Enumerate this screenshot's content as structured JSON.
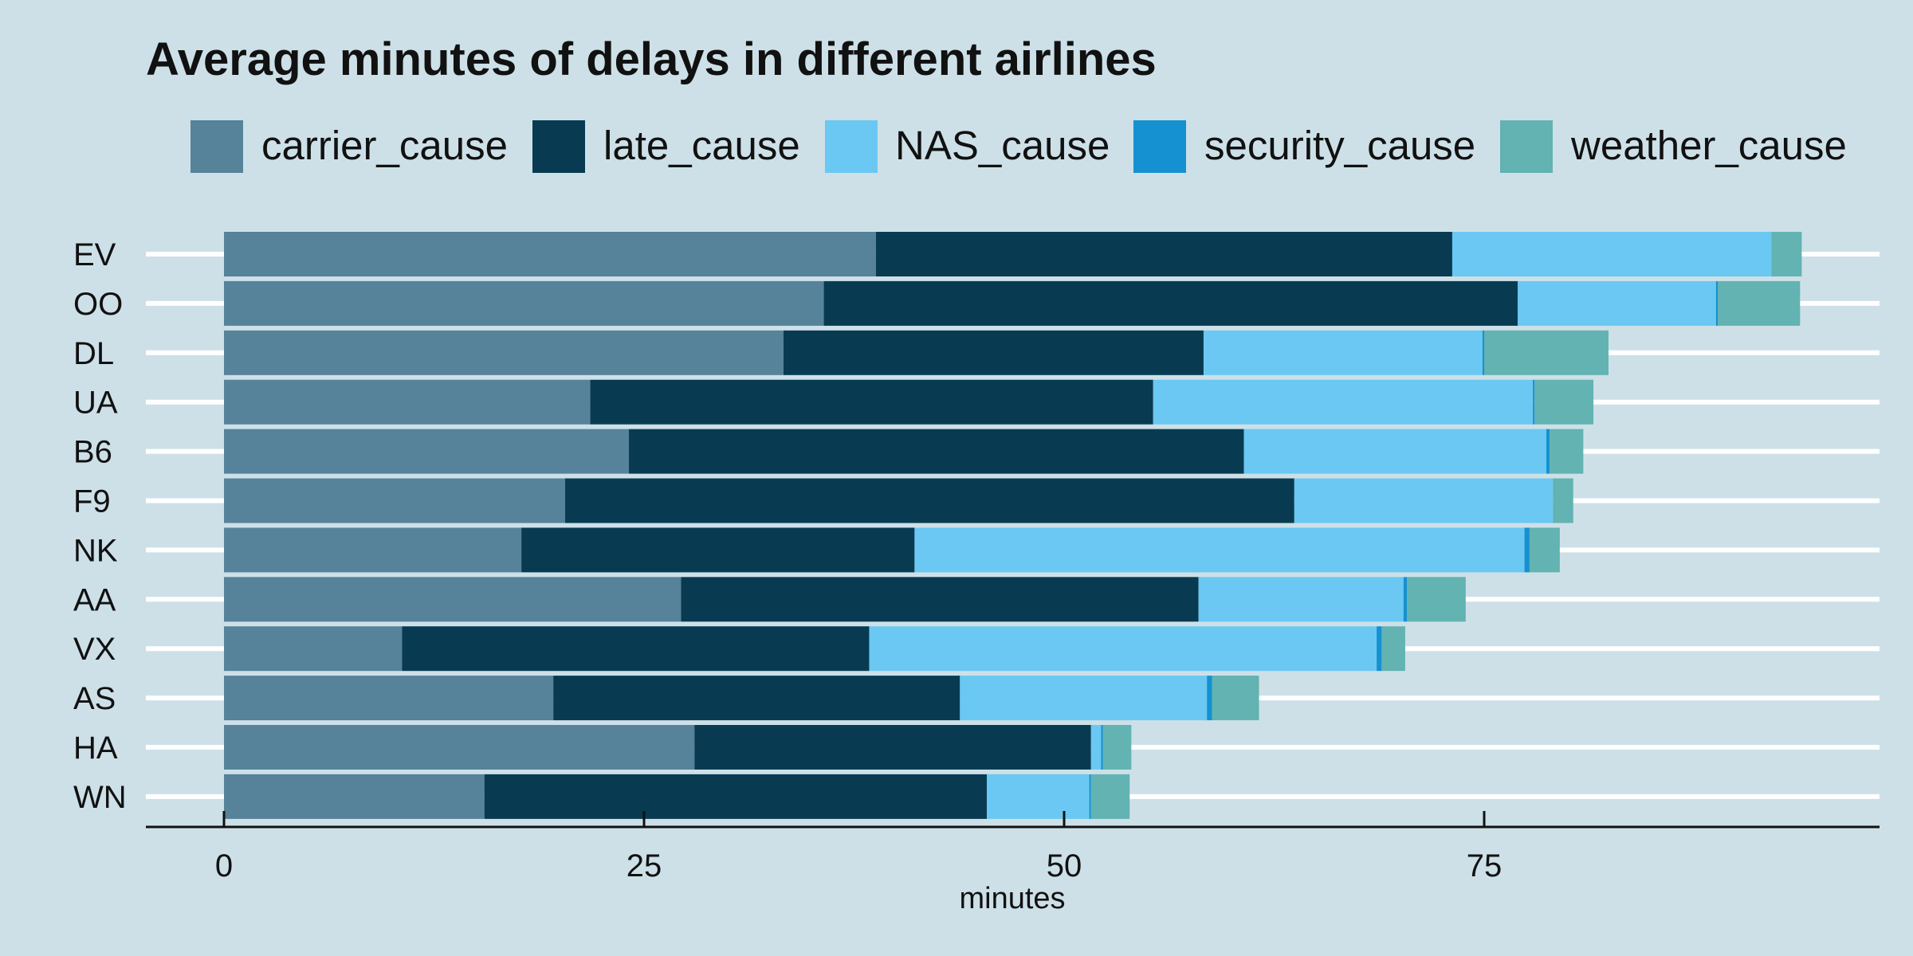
{
  "chart_data": {
    "type": "bar",
    "orientation": "horizontal",
    "stacked": true,
    "title": "Average minutes of delays in different airlines",
    "xlabel": "minutes",
    "ylabel": "",
    "xlim": [
      0,
      98
    ],
    "xticks": [
      0,
      25,
      50,
      75
    ],
    "xtick_labels": [
      "0",
      "25",
      "50",
      "75"
    ],
    "grid": "horizontal major lines only",
    "legend_position": "top",
    "categories": [
      "EV",
      "OO",
      "DL",
      "UA",
      "B6",
      "F9",
      "NK",
      "AA",
      "VX",
      "AS",
      "HA",
      "WN"
    ],
    "series": [
      {
        "name": "carrier_cause",
        "color": "#56829a",
        "values": [
          38.8,
          35.7,
          33.3,
          21.8,
          24.1,
          20.3,
          17.7,
          27.2,
          10.6,
          19.6,
          28.0,
          15.5
        ]
      },
      {
        "name": "late_cause",
        "color": "#083b52",
        "values": [
          34.3,
          41.3,
          25.0,
          33.5,
          36.6,
          43.4,
          23.4,
          30.8,
          27.8,
          24.2,
          23.6,
          29.9
        ]
      },
      {
        "name": "NAS_cause",
        "color": "#6ac8f2",
        "values": [
          19.0,
          11.8,
          16.6,
          22.6,
          18.0,
          15.4,
          36.3,
          12.2,
          30.2,
          14.7,
          0.6,
          6.1
        ]
      },
      {
        "name": "security_cause",
        "color": "#1591d1",
        "values": [
          0.0,
          0.1,
          0.1,
          0.1,
          0.2,
          0.0,
          0.3,
          0.2,
          0.3,
          0.3,
          0.1,
          0.1
        ]
      },
      {
        "name": "weather_cause",
        "color": "#62b3b1",
        "values": [
          1.8,
          4.9,
          7.4,
          3.5,
          2.0,
          1.2,
          1.8,
          3.5,
          1.4,
          2.8,
          1.7,
          2.3
        ]
      }
    ]
  }
}
